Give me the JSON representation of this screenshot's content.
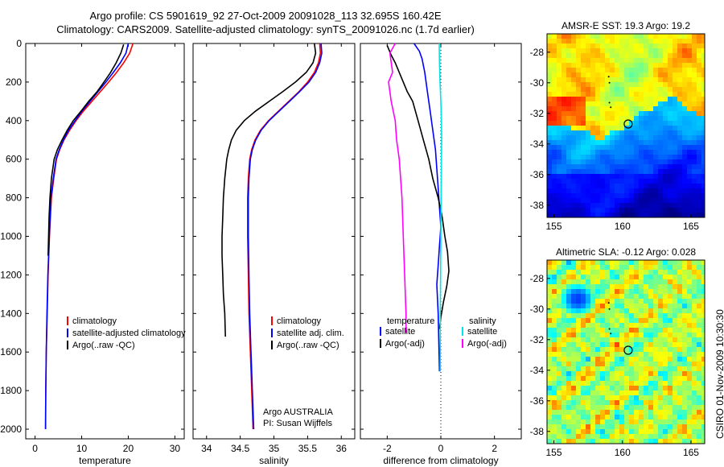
{
  "title": {
    "line1": "Argo profile: CS 5901619_92 27-Oct-2009 20091028_113 32.695S 160.42E",
    "line2": "Climatology: CARS2009. Satellite-adjusted climatology: synTS_20091026.nc (1.7d earlier)"
  },
  "credit": {
    "line1": "Argo AUSTRALIA",
    "line2": "PI: Susan Wijffels"
  },
  "side_label": "CSIRO 01-Nov-2009 10:30:30",
  "colors": {
    "red": "#ff0000",
    "blue": "#0000ff",
    "black": "#000000",
    "cyan": "#00e5e5",
    "magenta": "#ff00ff"
  },
  "chart_data": [
    {
      "type": "line",
      "id": "temperature",
      "xlabel": "temperature",
      "xlim": [
        -2,
        32
      ],
      "xticks": [
        0,
        10,
        20,
        30
      ],
      "ylim": [
        2050,
        0
      ],
      "yticks": [
        0,
        200,
        400,
        600,
        800,
        1000,
        1200,
        1400,
        1600,
        1800,
        2000
      ],
      "legend": [
        "climatology",
        "satellite-adjusted climatology",
        "Argo(..raw -QC)"
      ],
      "series": [
        {
          "name": "climatology",
          "color": "red",
          "x": [
            21.0,
            20.3,
            19.0,
            17.5,
            15.8,
            14.0,
            12.2,
            10.4,
            8.8,
            7.4,
            6.2,
            5.3,
            4.6,
            4.0,
            3.5,
            3.1,
            2.8,
            2.6,
            2.4,
            2.3,
            2.25
          ],
          "y": [
            0,
            50,
            100,
            150,
            200,
            250,
            300,
            350,
            400,
            450,
            500,
            550,
            600,
            700,
            800,
            1000,
            1200,
            1400,
            1600,
            1800,
            2000
          ]
        },
        {
          "name": "satellite-adjusted climatology",
          "color": "blue",
          "x": [
            20.0,
            19.5,
            18.3,
            16.8,
            15.2,
            13.5,
            11.8,
            10.1,
            8.6,
            7.2,
            6.1,
            5.2,
            4.5,
            3.9,
            3.4,
            3.05,
            2.75,
            2.55,
            2.4,
            2.3,
            2.25
          ],
          "y": [
            0,
            50,
            100,
            150,
            200,
            250,
            300,
            350,
            400,
            450,
            500,
            550,
            600,
            700,
            800,
            1000,
            1200,
            1400,
            1600,
            1800,
            2000
          ]
        },
        {
          "name": "Argo(..raw -QC)",
          "color": "black",
          "x": [
            19.0,
            18.4,
            17.4,
            16.2,
            14.8,
            13.3,
            11.5,
            9.9,
            8.2,
            6.9,
            5.8,
            4.8,
            4.1,
            3.5,
            3.2,
            3.0,
            2.9,
            2.8
          ],
          "y": [
            5,
            50,
            100,
            150,
            200,
            250,
            300,
            350,
            400,
            450,
            500,
            550,
            600,
            700,
            800,
            900,
            1000,
            1100
          ]
        }
      ]
    },
    {
      "type": "line",
      "id": "salinity",
      "xlabel": "salinity",
      "xlim": [
        33.8,
        36.2
      ],
      "xticks": [
        34,
        34.5,
        35,
        35.5,
        36
      ],
      "ylim": [
        2050,
        0
      ],
      "legend": [
        "climatology",
        "satellite adj. clim.",
        "Argo(..raw -QC)"
      ],
      "series": [
        {
          "name": "climatology",
          "color": "red",
          "x": [
            35.68,
            35.69,
            35.66,
            35.6,
            35.5,
            35.37,
            35.22,
            35.07,
            34.92,
            34.8,
            34.72,
            34.67,
            34.64,
            34.62,
            34.61,
            34.61,
            34.62,
            34.63,
            34.65,
            34.67,
            34.69
          ],
          "y": [
            0,
            50,
            100,
            150,
            200,
            250,
            300,
            350,
            400,
            450,
            500,
            550,
            600,
            700,
            800,
            1000,
            1200,
            1400,
            1600,
            1800,
            2000
          ]
        },
        {
          "name": "satellite adj. clim.",
          "color": "blue",
          "x": [
            35.7,
            35.71,
            35.68,
            35.62,
            35.52,
            35.38,
            35.23,
            35.08,
            34.93,
            34.81,
            34.73,
            34.68,
            34.65,
            34.63,
            34.62,
            34.62,
            34.63,
            34.64,
            34.66,
            34.68,
            34.7
          ],
          "y": [
            0,
            50,
            100,
            150,
            200,
            250,
            300,
            350,
            400,
            450,
            500,
            550,
            600,
            700,
            800,
            1000,
            1200,
            1400,
            1600,
            1800,
            2000
          ]
        },
        {
          "name": "Argo(..raw -QC)",
          "color": "black",
          "x": [
            35.6,
            35.62,
            35.58,
            35.48,
            35.32,
            35.13,
            34.93,
            34.73,
            34.56,
            34.44,
            34.37,
            34.33,
            34.3,
            34.27,
            34.25,
            34.24,
            34.23,
            34.23,
            34.24,
            34.25,
            34.27,
            34.28
          ],
          "y": [
            0,
            50,
            100,
            150,
            200,
            250,
            300,
            350,
            400,
            450,
            500,
            550,
            600,
            700,
            800,
            900,
            1000,
            1100,
            1200,
            1300,
            1400,
            1520
          ]
        }
      ]
    },
    {
      "type": "line",
      "id": "difference",
      "xlabel": "difference from climatology",
      "xlim": [
        -3,
        3
      ],
      "xticks": [
        -2,
        0,
        2
      ],
      "ylim": [
        2050,
        0
      ],
      "legend": {
        "temperature_heading": "temperature",
        "salinity_heading": "salinity",
        "entries": [
          "satellite",
          "Argo(-adj)",
          "satellite",
          "Argo(-adj)"
        ]
      },
      "series": [
        {
          "name": "temperature satellite",
          "color": "blue",
          "x": [
            -1.0,
            -0.9,
            -0.8,
            -0.7,
            -0.6,
            -0.5,
            -0.4,
            -0.3,
            -0.2,
            -0.15,
            -0.1,
            -0.05,
            0.0,
            -0.05,
            -0.1,
            -0.15,
            -0.1,
            -0.05
          ],
          "y": [
            0,
            20,
            40,
            80,
            150,
            250,
            350,
            450,
            550,
            650,
            750,
            850,
            950,
            1050,
            1150,
            1250,
            1400,
            1700
          ]
        },
        {
          "name": "temperature Argo(-adj)",
          "color": "black",
          "x": [
            -2.0,
            -1.85,
            -1.7,
            -1.55,
            -1.4,
            -1.25,
            -1.05,
            -0.85,
            -0.65,
            -0.45,
            -0.3,
            -0.1,
            0.05,
            0.15,
            0.25,
            0.3,
            0.22,
            0.1,
            0.0,
            -0.05
          ],
          "y": [
            10,
            60,
            100,
            150,
            200,
            250,
            300,
            400,
            500,
            600,
            700,
            800,
            900,
            1000,
            1080,
            1180,
            1260,
            1340,
            1420,
            1480
          ]
        },
        {
          "name": "salinity satellite",
          "color": "cyan",
          "x": [
            -0.06,
            -0.05,
            -0.03,
            0.0,
            0.02,
            0.03,
            0.02,
            0.01,
            0.0,
            -0.01,
            -0.02,
            -0.02
          ],
          "y": [
            0,
            100,
            200,
            300,
            400,
            500,
            600,
            800,
            1000,
            1200,
            1400,
            1700
          ]
        },
        {
          "name": "salinity Argo(-adj)",
          "color": "magenta",
          "x": [
            -1.7,
            -1.9,
            -1.8,
            -1.95,
            -1.85,
            -1.7,
            -1.65,
            -1.55,
            -1.5,
            -1.45,
            -1.4,
            -1.35,
            -1.3,
            -1.3
          ],
          "y": [
            0,
            50,
            150,
            200,
            300,
            400,
            500,
            600,
            700,
            800,
            1000,
            1200,
            1400,
            1500
          ]
        }
      ]
    },
    {
      "type": "heatmap",
      "id": "sst_map",
      "title": "AMSR-E SST: 19.3 Argo: 19.2",
      "xticks": [
        155,
        160,
        165
      ],
      "yticks": [
        -28,
        -30,
        -32,
        -34,
        -36,
        -38
      ],
      "xlim": [
        154.5,
        166
      ],
      "ylim": [
        -26.8,
        -38.8
      ],
      "marker": {
        "lon": 160.42,
        "lat": -32.695
      },
      "track": [
        [
          159.0,
          -29.6
        ],
        [
          159.05,
          -30.0
        ],
        [
          159.05,
          -31.3
        ],
        [
          159.15,
          -31.6
        ]
      ]
    },
    {
      "type": "heatmap",
      "id": "sla_map",
      "title": "Altimetric SLA: -0.12 Argo: 0.028",
      "xticks": [
        155,
        160,
        165
      ],
      "yticks": [
        -28,
        -30,
        -32,
        -34,
        -36,
        -38
      ],
      "xlim": [
        154.5,
        166
      ],
      "ylim": [
        -26.8,
        -38.8
      ],
      "marker": {
        "lon": 160.42,
        "lat": -32.695
      },
      "track": [
        [
          159.0,
          -29.6
        ],
        [
          159.05,
          -30.0
        ],
        [
          159.05,
          -31.3
        ],
        [
          159.15,
          -31.6
        ]
      ]
    }
  ]
}
